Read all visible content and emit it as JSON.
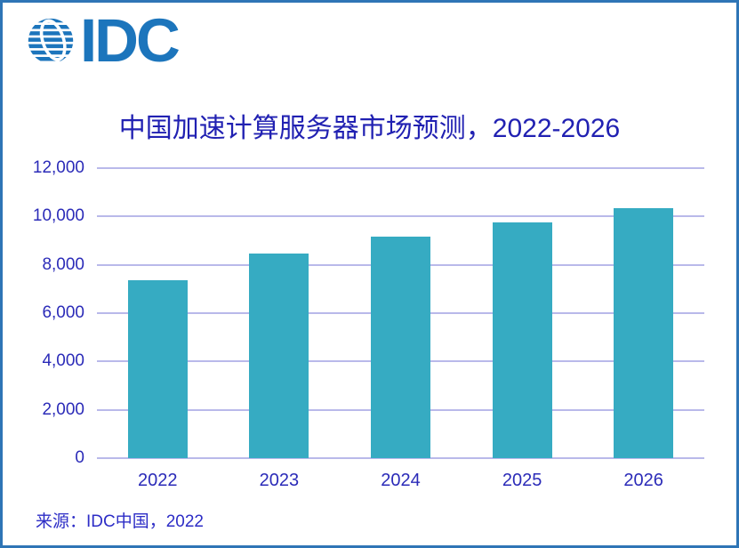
{
  "frame": {
    "border_color": "#2E75B6",
    "background_color": "#FFFFFF"
  },
  "logo": {
    "text": "IDC",
    "color": "#1C75BC",
    "globe_icon": "striped-globe"
  },
  "title": {
    "text": "中国加速计算服务器市场预测，2022-2026",
    "color": "#2121B2"
  },
  "source": {
    "text": "来源：IDC中国，2022",
    "color": "#2D2DC6"
  },
  "chart_data": {
    "type": "bar",
    "title": "中国加速计算服务器市场预测，2022-2026",
    "categories": [
      "2022",
      "2023",
      "2024",
      "2025",
      "2026"
    ],
    "values": [
      7350,
      8450,
      9150,
      9750,
      10340
    ],
    "xlabel": "",
    "ylabel": "",
    "ylim": [
      0,
      12000
    ],
    "ytick_interval": 2000,
    "yticks": [
      "12,000",
      "10,000",
      "8,000",
      "6,000",
      "4,000",
      "2,000",
      "0"
    ],
    "grid": true,
    "legend": false,
    "bar_color": "#36ABC2",
    "gridline_color": "#B9B9EA",
    "axis_label_color": "#2B2BB8"
  }
}
